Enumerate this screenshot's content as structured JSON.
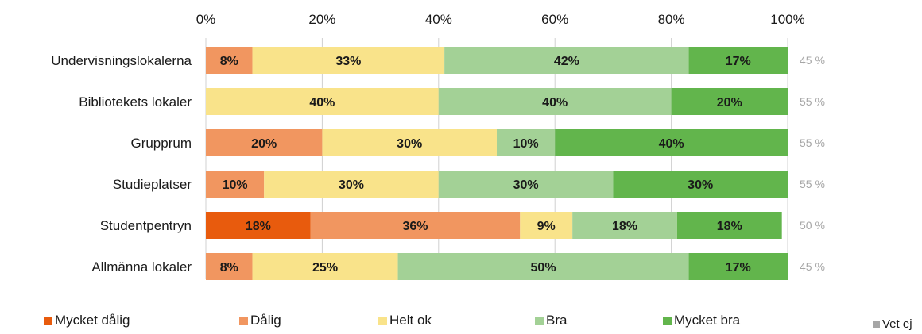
{
  "chart_data": {
    "type": "bar",
    "orientation": "horizontal",
    "stacked": true,
    "categories": [
      "Undervisningslokalerna",
      "Bibliotekets lokaler",
      "Grupprum",
      "Studieplatser",
      "Studentpentryn",
      "Allmänna lokaler"
    ],
    "x_ticks": [
      "0%",
      "20%",
      "40%",
      "60%",
      "80%",
      "100%"
    ],
    "xlim": [
      0,
      100
    ],
    "x_axis_position": "top",
    "grid": true,
    "legend_position": "bottom",
    "series": [
      {
        "name": "Mycket dålig",
        "color": "#e85b0d",
        "values": [
          0,
          0,
          0,
          0,
          18,
          0
        ]
      },
      {
        "name": "Dålig",
        "color": "#f19660",
        "values": [
          8,
          0,
          20,
          10,
          36,
          8
        ]
      },
      {
        "name": "Helt ok",
        "color": "#f9e38a",
        "values": [
          33,
          40,
          30,
          30,
          9,
          25
        ]
      },
      {
        "name": "Bra",
        "color": "#a3d196",
        "values": [
          42,
          40,
          10,
          30,
          18,
          50
        ]
      },
      {
        "name": "Mycket bra",
        "color": "#62b54c",
        "values": [
          17,
          20,
          40,
          30,
          18,
          17
        ]
      },
      {
        "name": "Vet ej",
        "color": "#a6a6a6",
        "values": [
          0,
          0,
          0,
          0,
          0,
          0
        ]
      }
    ],
    "data_labels": [
      [
        "",
        "8%",
        "33%",
        "42%",
        "17%",
        ""
      ],
      [
        "",
        "",
        "40%",
        "40%",
        "20%",
        ""
      ],
      [
        "",
        "20%",
        "30%",
        "10%",
        "40%",
        ""
      ],
      [
        "",
        "10%",
        "30%",
        "30%",
        "30%",
        ""
      ],
      [
        "18%",
        "36%",
        "9%",
        "18%",
        "18%",
        ""
      ],
      [
        "",
        "8%",
        "25%",
        "50%",
        "17%",
        ""
      ]
    ],
    "response_rates": [
      "45 %",
      "55 %",
      "55 %",
      "55 %",
      "50 %",
      "45 %"
    ]
  }
}
